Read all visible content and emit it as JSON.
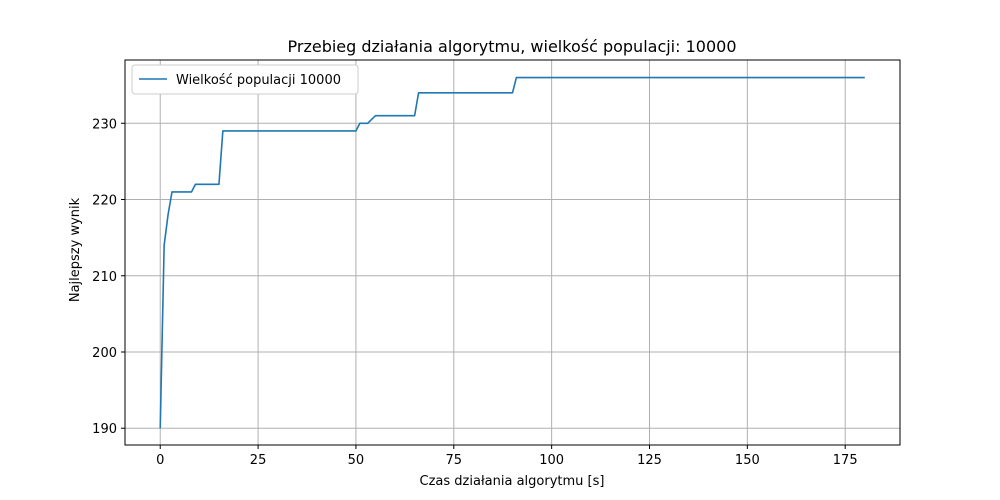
{
  "chart_data": {
    "type": "line",
    "title": "Przebieg działania algorytmu, wielkość populacji: 10000",
    "xlabel": "Czas działania algorytmu [s]",
    "ylabel": "Najlepszy wynik",
    "xlim": [
      -9,
      189
    ],
    "ylim": [
      187.8,
      238.3
    ],
    "xticks": [
      0,
      25,
      50,
      75,
      100,
      125,
      150,
      175
    ],
    "yticks": [
      190,
      200,
      210,
      220,
      230
    ],
    "grid": true,
    "legend_position": "top-left",
    "series": [
      {
        "name": "Wielkość populacji 10000",
        "color": "#1f77b4",
        "x": [
          0,
          1,
          2,
          3,
          7,
          8,
          9,
          15,
          16,
          50,
          51,
          53,
          54,
          55,
          65,
          66,
          90,
          91,
          180
        ],
        "y": [
          190,
          214,
          218,
          221,
          221,
          221,
          222,
          222,
          229,
          229,
          230,
          230,
          230.5,
          231,
          231,
          234,
          234,
          236,
          236
        ]
      }
    ]
  }
}
